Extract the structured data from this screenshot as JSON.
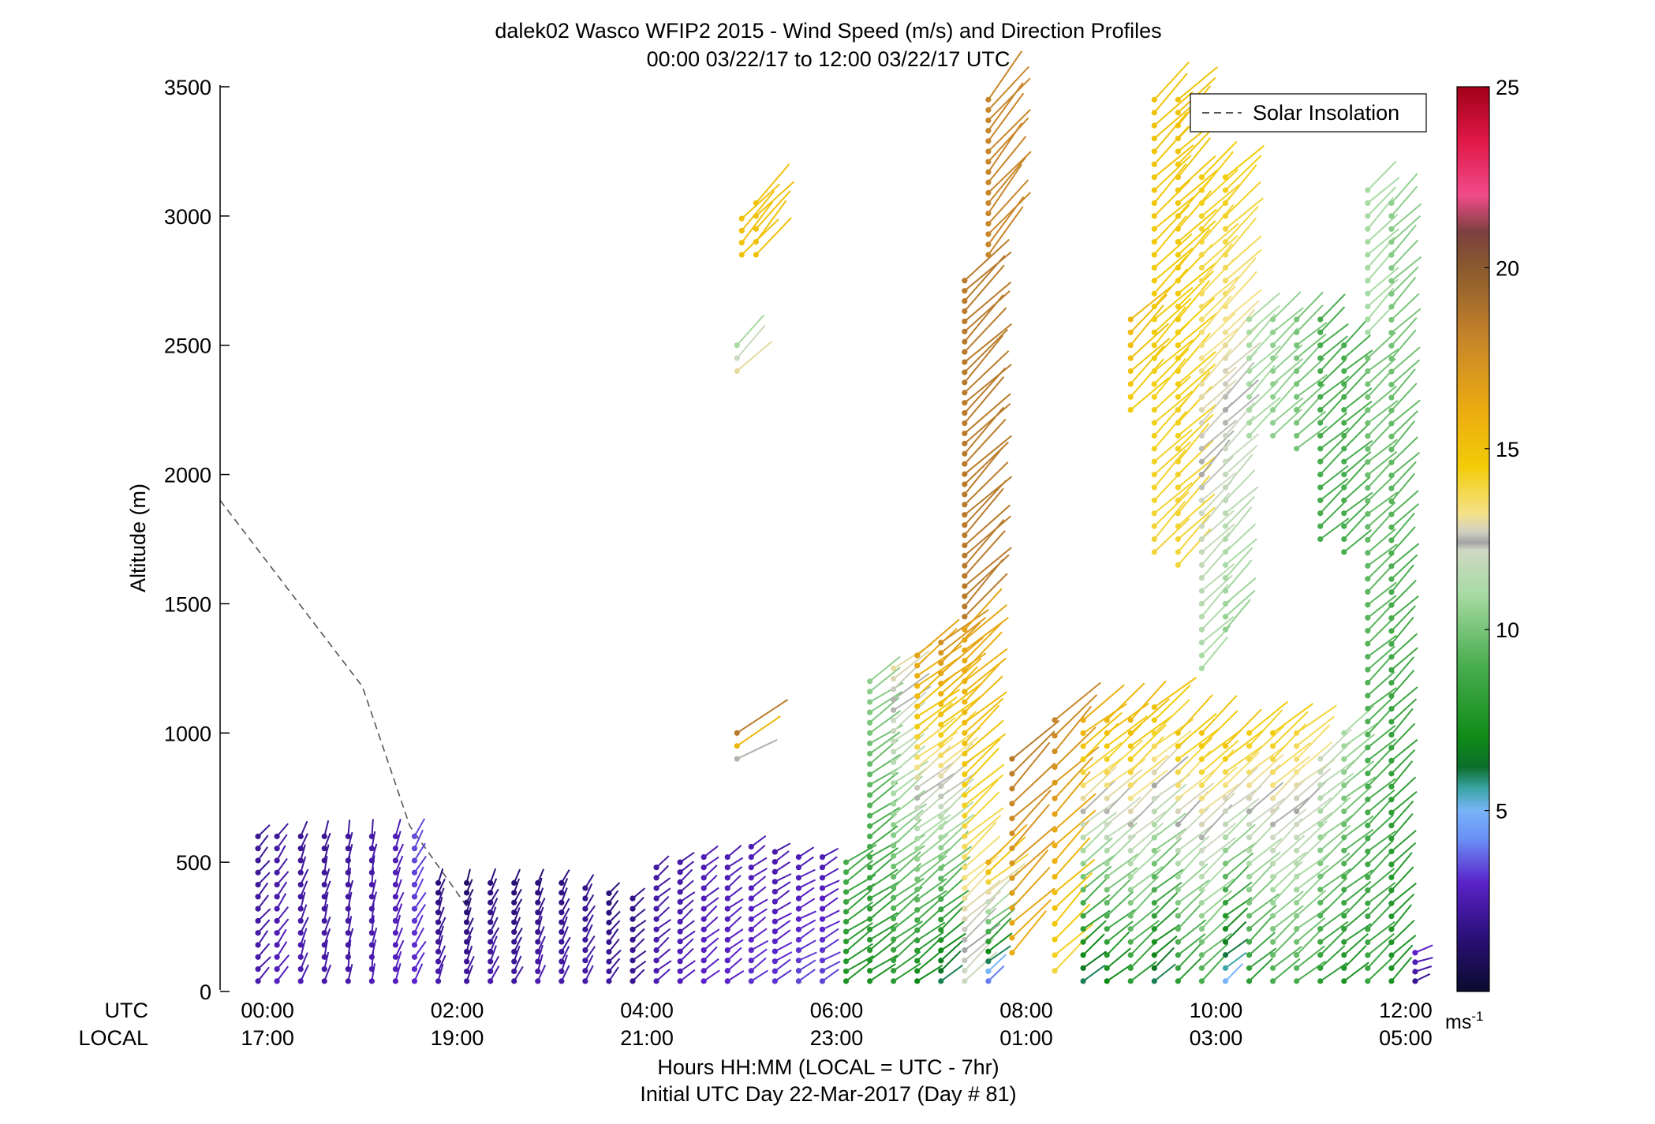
{
  "chart_data": {
    "type": "scatter",
    "title": "dalek02 Wasco WFIP2 2015 - Wind Speed (m/s) and Direction Profiles",
    "subtitle": "00:00 03/22/17 to 12:00 03/22/17  UTC",
    "ylabel": "Altitude (m)",
    "xlabel": "Hours HH:MM  (LOCAL = UTC - 7hr)",
    "xlabel2": "Initial UTC Day 22-Mar-2017 (Day # 81)",
    "xlim": [
      -0.5,
      12.3
    ],
    "ylim": [
      0,
      3500
    ],
    "grid": false,
    "legend": {
      "position": "top-right",
      "entries": [
        "Solar Insolation"
      ]
    },
    "row_labels": {
      "utc": "UTC",
      "local": "LOCAL"
    },
    "x_ticks": [
      {
        "x": 0,
        "utc": "00:00",
        "local": "17:00"
      },
      {
        "x": 2,
        "utc": "02:00",
        "local": "19:00"
      },
      {
        "x": 4,
        "utc": "04:00",
        "local": "21:00"
      },
      {
        "x": 6,
        "utc": "06:00",
        "local": "23:00"
      },
      {
        "x": 8,
        "utc": "08:00",
        "local": "01:00"
      },
      {
        "x": 10,
        "utc": "10:00",
        "local": "03:00"
      },
      {
        "x": 12,
        "utc": "12:00",
        "local": "05:00"
      }
    ],
    "y_ticks": [
      0,
      500,
      1000,
      1500,
      2000,
      2500,
      3000,
      3500
    ],
    "colorbar": {
      "range": [
        0,
        25
      ],
      "ticks": [
        5,
        10,
        15,
        20,
        25
      ],
      "unit_label": "ms",
      "unit_sup": "-1",
      "colors": [
        {
          "v": 0,
          "c": "#0b0b2e"
        },
        {
          "v": 1.5,
          "c": "#2a0f78"
        },
        {
          "v": 3,
          "c": "#5a22c8"
        },
        {
          "v": 4.2,
          "c": "#6a8ef5"
        },
        {
          "v": 5,
          "c": "#78b4f8"
        },
        {
          "v": 5.6,
          "c": "#3aa6a6"
        },
        {
          "v": 6.2,
          "c": "#0c6e2c"
        },
        {
          "v": 7,
          "c": "#0f8a17"
        },
        {
          "v": 9,
          "c": "#48ad4e"
        },
        {
          "v": 11,
          "c": "#a8dba4"
        },
        {
          "v": 12.2,
          "c": "#cfd8c4"
        },
        {
          "v": 12.4,
          "c": "#a4a4a4"
        },
        {
          "v": 12.7,
          "c": "#d0d0c2"
        },
        {
          "v": 13.2,
          "c": "#f5e28a"
        },
        {
          "v": 14.5,
          "c": "#f2cc08"
        },
        {
          "v": 16,
          "c": "#ecad10"
        },
        {
          "v": 18,
          "c": "#c8862a"
        },
        {
          "v": 20,
          "c": "#8a5a2e"
        },
        {
          "v": 21,
          "c": "#7c4040"
        },
        {
          "v": 22,
          "c": "#f04c8a"
        },
        {
          "v": 23.5,
          "c": "#e01848"
        },
        {
          "v": 25,
          "c": "#a00018"
        }
      ]
    },
    "solar_insolation": [
      [
        -0.5,
        1900
      ],
      [
        1.0,
        1180
      ],
      [
        1.5,
        640
      ],
      [
        2.1,
        330
      ]
    ],
    "profiles": [
      {
        "t": -0.1,
        "z0": 40,
        "z1": 600,
        "dz": 45,
        "s0": 2.5,
        "s1": 2.0,
        "dir": 220
      },
      {
        "t": 0.1,
        "z0": 40,
        "z1": 600,
        "dz": 45,
        "s0": 2.8,
        "s1": 2.2,
        "dir": 215
      },
      {
        "t": 0.35,
        "z0": 40,
        "z1": 600,
        "dz": 45,
        "s0": 2.6,
        "s1": 2.0,
        "dir": 200
      },
      {
        "t": 0.6,
        "z0": 40,
        "z1": 600,
        "dz": 45,
        "s0": 2.4,
        "s1": 2.0,
        "dir": 195
      },
      {
        "t": 0.85,
        "z0": 40,
        "z1": 600,
        "dz": 45,
        "s0": 2.4,
        "s1": 2.1,
        "dir": 190
      },
      {
        "t": 1.1,
        "z0": 40,
        "z1": 600,
        "dz": 45,
        "s0": 2.6,
        "s1": 2.3,
        "dir": 190
      },
      {
        "t": 1.35,
        "z0": 40,
        "z1": 600,
        "dz": 45,
        "s0": 2.8,
        "s1": 2.6,
        "dir": 200
      },
      {
        "t": 1.55,
        "z0": 40,
        "z1": 600,
        "dz": 45,
        "s0": 3.0,
        "s1": 3.5,
        "dir": 210
      },
      {
        "t": 1.8,
        "z0": 40,
        "z1": 420,
        "dz": 40,
        "s0": 2.5,
        "s1": 1.5,
        "dir": 200
      },
      {
        "t": 2.1,
        "z0": 40,
        "z1": 420,
        "dz": 40,
        "s0": 2.2,
        "s1": 1.2,
        "dir": 200
      },
      {
        "t": 2.35,
        "z0": 40,
        "z1": 420,
        "dz": 40,
        "s0": 2.4,
        "s1": 1.6,
        "dir": 205
      },
      {
        "t": 2.6,
        "z0": 40,
        "z1": 420,
        "dz": 40,
        "s0": 2.2,
        "s1": 1.4,
        "dir": 205
      },
      {
        "t": 2.85,
        "z0": 40,
        "z1": 420,
        "dz": 40,
        "s0": 2.5,
        "s1": 1.5,
        "dir": 200
      },
      {
        "t": 3.1,
        "z0": 40,
        "z1": 420,
        "dz": 40,
        "s0": 2.4,
        "s1": 1.6,
        "dir": 205
      },
      {
        "t": 3.35,
        "z0": 40,
        "z1": 400,
        "dz": 40,
        "s0": 2.4,
        "s1": 1.8,
        "dir": 210
      },
      {
        "t": 3.6,
        "z0": 40,
        "z1": 380,
        "dz": 40,
        "s0": 2.2,
        "s1": 1.5,
        "dir": 220
      },
      {
        "t": 3.85,
        "z0": 40,
        "z1": 360,
        "dz": 40,
        "s0": 2.0,
        "s1": 1.8,
        "dir": 230
      },
      {
        "t": 4.1,
        "z0": 40,
        "z1": 480,
        "dz": 40,
        "s0": 2.6,
        "s1": 2.2,
        "dir": 230
      },
      {
        "t": 4.35,
        "z0": 40,
        "z1": 500,
        "dz": 40,
        "s0": 2.8,
        "s1": 2.3,
        "dir": 230
      },
      {
        "t": 4.6,
        "z0": 40,
        "z1": 520,
        "dz": 40,
        "s0": 3.0,
        "s1": 2.6,
        "dir": 230
      },
      {
        "t": 4.85,
        "z0": 40,
        "z1": 520,
        "dz": 40,
        "s0": 3.0,
        "s1": 2.6,
        "dir": 232
      },
      {
        "t": 5.1,
        "z0": 40,
        "z1": 560,
        "dz": 40,
        "s0": 3.2,
        "s1": 2.6,
        "dir": 235
      },
      {
        "t": 5.35,
        "z0": 40,
        "z1": 540,
        "dz": 40,
        "s0": 3.2,
        "s1": 2.4,
        "dir": 238
      },
      {
        "t": 5.6,
        "z0": 40,
        "z1": 520,
        "dz": 40,
        "s0": 3.4,
        "s1": 2.6,
        "dir": 240
      },
      {
        "t": 5.85,
        "z0": 40,
        "z1": 520,
        "dz": 40,
        "s0": 3.4,
        "s1": 2.6,
        "dir": 240
      },
      {
        "t": 6.1,
        "z0": 40,
        "z1": 500,
        "dz": 40,
        "s0": 7.5,
        "s1": 9.0,
        "dir": 235
      },
      {
        "t": 6.35,
        "z0": 40,
        "z1": 1200,
        "dz": 40,
        "s0": 7.5,
        "s1": 10.5,
        "dir": 235
      },
      {
        "t": 6.6,
        "z0": 40,
        "z1": 1250,
        "dz": 40,
        "s0": 8.0,
        "s1": 13.0,
        "dir": 232
      },
      {
        "t": 6.85,
        "z0": 40,
        "z1": 1300,
        "dz": 40,
        "s0": 7.0,
        "s1": 16.5,
        "dir": 232
      },
      {
        "t": 7.1,
        "z0": 40,
        "z1": 1350,
        "dz": 40,
        "s0": 6.0,
        "s1": 17.5,
        "dir": 230
      },
      {
        "t": 7.35,
        "z0": 1450,
        "z1": 2750,
        "dz": 40,
        "s0": 18.5,
        "s1": 18.5,
        "dir": 225
      },
      {
        "t": 7.35,
        "z0": 40,
        "z1": 1400,
        "dz": 40,
        "s0": 12.0,
        "s1": 16.5,
        "dir": 228
      },
      {
        "t": 7.6,
        "z0": 40,
        "z1": 500,
        "dz": 40,
        "s0": 4.0,
        "s1": 16.0,
        "dir": 230
      },
      {
        "t": 7.6,
        "z0": 2850,
        "z1": 3450,
        "dz": 40,
        "s0": 18.0,
        "s1": 18.0,
        "dir": 220
      },
      {
        "t": 7.85,
        "z0": 150,
        "z1": 900,
        "dz": 60,
        "s0": 16.0,
        "s1": 18.5,
        "dir": 225
      },
      {
        "t": 8.3,
        "z0": 80,
        "z1": 1050,
        "dz": 60,
        "s0": 14.0,
        "s1": 18.0,
        "dir": 225
      },
      {
        "t": 8.6,
        "z0": 40,
        "z1": 1050,
        "dz": 50,
        "s0": 6.0,
        "s1": 16.0,
        "dir": 230
      },
      {
        "t": 8.85,
        "z0": 40,
        "z1": 1050,
        "dz": 50,
        "s0": 7.0,
        "s1": 15.5,
        "dir": 230
      },
      {
        "t": 9.1,
        "z0": 40,
        "z1": 1050,
        "dz": 50,
        "s0": 8.0,
        "s1": 15.5,
        "dir": 228
      },
      {
        "t": 9.1,
        "z0": 2250,
        "z1": 2600,
        "dz": 50,
        "s0": 14.5,
        "s1": 15.5,
        "dir": 225
      },
      {
        "t": 9.35,
        "z0": 40,
        "z1": 1100,
        "dz": 50,
        "s0": 6.0,
        "s1": 15.0,
        "dir": 230
      },
      {
        "t": 9.35,
        "z0": 1700,
        "z1": 3450,
        "dz": 50,
        "s0": 14.0,
        "s1": 15.0,
        "dir": 225
      },
      {
        "t": 9.6,
        "z0": 40,
        "z1": 1000,
        "dz": 50,
        "s0": 8.0,
        "s1": 15.0,
        "dir": 228
      },
      {
        "t": 9.6,
        "z0": 1650,
        "z1": 3450,
        "dz": 50,
        "s0": 14.0,
        "s1": 15.0,
        "dir": 225
      },
      {
        "t": 9.85,
        "z0": 40,
        "z1": 1000,
        "dz": 50,
        "s0": 9.0,
        "s1": 15.0,
        "dir": 228
      },
      {
        "t": 9.85,
        "z0": 1250,
        "z1": 3150,
        "dz": 50,
        "s0": 11.0,
        "s1": 14.5,
        "dir": 225
      },
      {
        "t": 10.1,
        "z0": 40,
        "z1": 950,
        "dz": 50,
        "s0": 5.0,
        "s1": 15.0,
        "dir": 230
      },
      {
        "t": 10.1,
        "z0": 1400,
        "z1": 3150,
        "dz": 50,
        "s0": 10.5,
        "s1": 14.5,
        "dir": 225
      },
      {
        "t": 10.35,
        "z0": 40,
        "z1": 1000,
        "dz": 50,
        "s0": 8.0,
        "s1": 14.5,
        "dir": 228
      },
      {
        "t": 10.35,
        "z0": 2150,
        "z1": 2600,
        "dz": 50,
        "s0": 11.0,
        "s1": 11.0,
        "dir": 225
      },
      {
        "t": 10.6,
        "z0": 40,
        "z1": 1000,
        "dz": 50,
        "s0": 9.0,
        "s1": 14.5,
        "dir": 228
      },
      {
        "t": 10.6,
        "z0": 2150,
        "z1": 2600,
        "dz": 50,
        "s0": 10.5,
        "s1": 10.5,
        "dir": 225
      },
      {
        "t": 10.85,
        "z0": 40,
        "z1": 1000,
        "dz": 50,
        "s0": 9.0,
        "s1": 14.0,
        "dir": 230
      },
      {
        "t": 10.85,
        "z0": 2100,
        "z1": 2600,
        "dz": 50,
        "s0": 10.0,
        "s1": 10.0,
        "dir": 228
      },
      {
        "t": 11.1,
        "z0": 40,
        "z1": 900,
        "dz": 50,
        "s0": 8.0,
        "s1": 12.0,
        "dir": 230
      },
      {
        "t": 11.1,
        "z0": 1750,
        "z1": 2600,
        "dz": 50,
        "s0": 9.0,
        "s1": 9.0,
        "dir": 228
      },
      {
        "t": 11.35,
        "z0": 40,
        "z1": 1000,
        "dz": 50,
        "s0": 7.5,
        "s1": 11.0,
        "dir": 230
      },
      {
        "t": 11.35,
        "z0": 1700,
        "z1": 2500,
        "dz": 50,
        "s0": 9.0,
        "s1": 9.0,
        "dir": 228
      },
      {
        "t": 11.6,
        "z0": 40,
        "z1": 2450,
        "dz": 50,
        "s0": 8.5,
        "s1": 10.0,
        "dir": 228
      },
      {
        "t": 11.6,
        "z0": 2550,
        "z1": 3100,
        "dz": 50,
        "s0": 11.0,
        "s1": 11.0,
        "dir": 225
      },
      {
        "t": 11.85,
        "z0": 40,
        "z1": 3050,
        "dz": 50,
        "s0": 7.5,
        "s1": 10.5,
        "dir": 225
      },
      {
        "t": 12.1,
        "z0": 40,
        "z1": 150,
        "dz": 40,
        "s0": 2.0,
        "s1": 3.0,
        "dir": 250
      },
      {
        "t": 5.15,
        "z0": 2850,
        "z1": 3050,
        "dz": 50,
        "s0": 15.0,
        "s1": 15.0,
        "dir": 222
      },
      {
        "t": 5.0,
        "z0": 2850,
        "z1": 2990,
        "dz": 50,
        "s0": 15.0,
        "s1": 15.0,
        "dir": 222
      },
      {
        "t": 4.95,
        "z0": 2400,
        "z1": 2500,
        "dz": 60,
        "s0": 13.0,
        "s1": 11.0,
        "dir": 225
      },
      {
        "t": 4.95,
        "z0": 900,
        "z1": 1000,
        "dz": 60,
        "s0": 12.5,
        "s1": 18.5,
        "dir": 240
      }
    ]
  }
}
